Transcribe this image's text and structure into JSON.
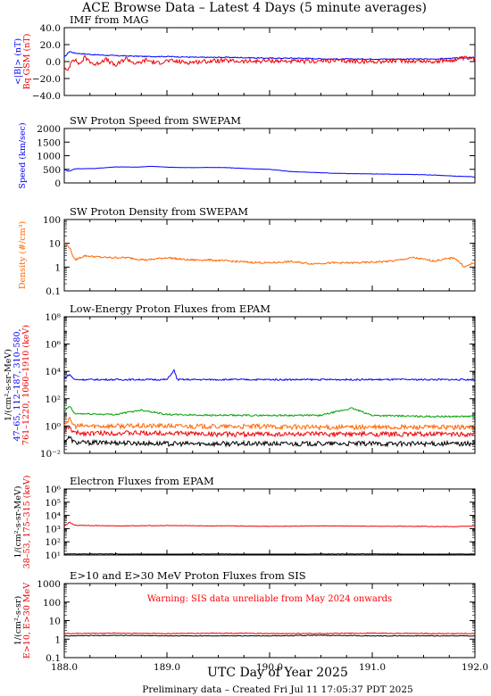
{
  "page": {
    "title": "ACE Browse Data – Latest 4 Days (5 minute averages)",
    "x_axis_label": "UTC Day of Year 2025",
    "footer": "Preliminary data – Created Fri Jul 11 17:05:37 PDT 2025"
  },
  "colors": {
    "blue": "#0000ff",
    "red": "#ee0000",
    "orange": "#ff6600",
    "green": "#00a000",
    "black": "#000000",
    "warning": "#ff0000"
  },
  "chart_data": [
    {
      "id": "imf",
      "type": "line",
      "title": "IMF from MAG",
      "ylabel_lines": [
        {
          "text": "<|B|> (nT)",
          "color": "#0000ff"
        },
        {
          "text": "Bⁱ GSM (nT)",
          "color": "#ee0000"
        }
      ],
      "ylabel_display": [
        {
          "text": "<|B|> (nT)",
          "color": "#0000ff"
        },
        {
          "text": "Bq GSM (nT)",
          "color": "#ee0000"
        }
      ],
      "yscale": "linear",
      "ylim": [
        -40,
        40
      ],
      "yticks": [
        -40,
        -20,
        0,
        20,
        40
      ],
      "ytick_labels": [
        "−40.0",
        "−20.0",
        "0.0",
        "20.0",
        "40.0"
      ],
      "xlim": [
        188.0,
        192.0
      ],
      "series": [
        {
          "color": "#0000ff",
          "x": [
            188.0,
            188.05,
            188.1,
            188.3,
            188.5,
            188.8,
            189.0,
            189.3,
            189.6,
            190.0,
            190.3,
            190.6,
            191.0,
            191.3,
            191.6,
            191.8,
            192.0
          ],
          "y": [
            5,
            12,
            10,
            8,
            7,
            6,
            6,
            5,
            5,
            4,
            4,
            3,
            3,
            3,
            3,
            4,
            5
          ]
        },
        {
          "color": "#ee0000",
          "x": [
            188.0,
            188.03,
            188.08,
            188.15,
            188.2,
            188.3,
            188.4,
            188.5,
            188.6,
            188.7,
            188.8,
            188.9,
            189.0,
            189.2,
            189.5,
            189.8,
            190.0,
            190.3,
            190.6,
            191.0,
            191.3,
            191.6,
            191.8,
            191.9,
            192.0
          ],
          "y": [
            -8,
            -12,
            4,
            -3,
            5,
            -4,
            3,
            -5,
            4,
            -3,
            2,
            -2,
            1,
            -1,
            1,
            0,
            1,
            0,
            1,
            0,
            1,
            0,
            2,
            4,
            3
          ]
        }
      ]
    },
    {
      "id": "speed",
      "type": "line",
      "title": "SW Proton Speed from SWEPAM",
      "ylabel_display": [
        {
          "text": "Speed (km/sec)",
          "color": "#0000ff"
        }
      ],
      "yscale": "linear",
      "ylim": [
        0,
        2000
      ],
      "yticks": [
        0,
        500,
        1000,
        1500,
        2000
      ],
      "ytick_labels": [
        "0",
        "500",
        "1000",
        "1500",
        "2000"
      ],
      "xlim": [
        188.0,
        192.0
      ],
      "series": [
        {
          "color": "#0000ff",
          "x": [
            188.0,
            188.05,
            188.1,
            188.3,
            188.5,
            188.7,
            188.85,
            189.0,
            189.2,
            189.4,
            189.6,
            189.8,
            190.0,
            190.2,
            190.4,
            190.6,
            190.8,
            191.0,
            191.2,
            191.4,
            191.6,
            191.8,
            192.0
          ],
          "y": [
            480,
            430,
            520,
            530,
            590,
            580,
            610,
            580,
            560,
            570,
            560,
            520,
            500,
            420,
            390,
            360,
            340,
            330,
            320,
            310,
            290,
            250,
            220
          ]
        }
      ]
    },
    {
      "id": "density",
      "type": "line",
      "title": "SW Proton Density from SWEPAM",
      "ylabel_display": [
        {
          "text": "Density (#/cm³)",
          "color": "#ff6600"
        }
      ],
      "yscale": "log",
      "ylim": [
        0.1,
        100
      ],
      "yticks": [
        0.1,
        1,
        10,
        100
      ],
      "ytick_labels": [
        "0.1",
        "1",
        "10",
        "100"
      ],
      "xlim": [
        188.0,
        192.0
      ],
      "series": [
        {
          "color": "#ff6600",
          "x": [
            188.0,
            188.05,
            188.1,
            188.2,
            188.4,
            188.6,
            188.8,
            189.0,
            189.2,
            189.4,
            189.6,
            189.8,
            190.0,
            190.2,
            190.4,
            190.6,
            190.8,
            191.0,
            191.2,
            191.4,
            191.6,
            191.8,
            191.9,
            192.0
          ],
          "y": [
            10,
            7,
            2,
            3,
            2.5,
            2.5,
            2,
            2.5,
            2,
            2,
            1.8,
            1.6,
            1.5,
            1.7,
            1.4,
            1.5,
            1.5,
            1.6,
            1.8,
            2.5,
            1.8,
            2.5,
            1,
            1.6
          ]
        }
      ]
    },
    {
      "id": "proton-flux",
      "type": "line",
      "title": "Low-Energy Proton Fluxes from EPAM",
      "ylabel_display": [
        {
          "text": "1/(cm²-s-sr-MeV)",
          "color": "#000000"
        },
        {
          "text": "47–65, 112–187, 310–580,",
          "color": "#0000ff"
        },
        {
          "text": "761–1220, 1060–1910 (keV)",
          "color": "#ee0000"
        }
      ],
      "yscale": "log",
      "ylim": [
        0.01,
        100000000
      ],
      "yticks": [
        0.01,
        1,
        100,
        10000,
        1000000,
        100000000
      ],
      "ytick_labels": [
        "10⁻²",
        "10⁰",
        "10²",
        "10⁴",
        "10⁶",
        "10⁸"
      ],
      "xlim": [
        188.0,
        192.0
      ],
      "series": [
        {
          "name": "47–65",
          "color": "#0000ff",
          "x": [
            188.0,
            188.05,
            188.1,
            188.5,
            189.0,
            189.07,
            189.1,
            189.5,
            190.0,
            190.5,
            191.0,
            191.5,
            192.0
          ],
          "y": [
            3000,
            6000,
            2500,
            2500,
            2500,
            12000,
            2500,
            2500,
            2500,
            2500,
            2500,
            2500,
            2500
          ]
        },
        {
          "name": "112–187",
          "color": "#00a000",
          "x": [
            188.0,
            188.05,
            188.1,
            188.5,
            188.75,
            189.0,
            189.5,
            190.0,
            190.5,
            190.8,
            191.0,
            191.5,
            192.0
          ],
          "y": [
            10,
            30,
            8,
            7,
            15,
            7,
            6,
            6,
            6,
            20,
            6,
            5,
            5
          ]
        },
        {
          "name": "310–580",
          "color": "#ff6600",
          "x": [
            188.0,
            188.05,
            188.1,
            188.5,
            189.0,
            189.5,
            190.0,
            190.5,
            191.0,
            191.5,
            192.0
          ],
          "y": [
            1.5,
            3,
            1,
            1,
            1,
            0.9,
            0.9,
            0.8,
            0.8,
            0.8,
            0.8
          ]
        },
        {
          "name": "761–1220",
          "color": "#ee0000",
          "x": [
            188.0,
            188.05,
            188.1,
            188.5,
            189.0,
            189.5,
            190.0,
            190.5,
            191.0,
            191.5,
            192.0
          ],
          "y": [
            0.4,
            0.8,
            0.3,
            0.3,
            0.3,
            0.25,
            0.25,
            0.25,
            0.25,
            0.25,
            0.25
          ]
        },
        {
          "name": "1060–1910",
          "color": "#000000",
          "x": [
            188.0,
            188.05,
            188.1,
            188.5,
            189.0,
            189.5,
            190.0,
            190.5,
            191.0,
            191.5,
            192.0
          ],
          "y": [
            0.08,
            0.15,
            0.06,
            0.06,
            0.05,
            0.05,
            0.05,
            0.05,
            0.05,
            0.05,
            0.05
          ]
        }
      ]
    },
    {
      "id": "electron-flux",
      "type": "line",
      "title": "Electron Fluxes from EPAM",
      "ylabel_display": [
        {
          "text": "1/(cm²-s-sr-MeV)",
          "color": "#000000"
        },
        {
          "text": "38–53, 175–315 (keV)",
          "color": "#ee0000"
        }
      ],
      "yscale": "log",
      "ylim": [
        10,
        1000000
      ],
      "yticks": [
        10,
        100,
        1000,
        10000,
        100000,
        1000000
      ],
      "ytick_labels": [
        "10¹",
        "10²",
        "10³",
        "10⁴",
        "10⁵",
        "10⁶"
      ],
      "xlim": [
        188.0,
        192.0
      ],
      "series": [
        {
          "name": "38–53",
          "color": "#ee0000",
          "x": [
            188.0,
            188.05,
            188.1,
            188.5,
            189.0,
            189.5,
            190.0,
            190.5,
            191.0,
            191.5,
            191.8,
            192.0
          ],
          "y": [
            1500,
            3000,
            1800,
            1600,
            1700,
            1600,
            1500,
            1600,
            1500,
            1500,
            1400,
            1600
          ]
        },
        {
          "name": "175–315",
          "color": "#000000",
          "x": [
            188.0,
            188.5,
            189.0,
            189.5,
            190.0,
            190.5,
            191.0,
            191.5,
            192.0
          ],
          "y": [
            12,
            12,
            11,
            12,
            11,
            12,
            12,
            11,
            12
          ]
        }
      ]
    },
    {
      "id": "sis",
      "type": "line",
      "title": "E>10 and E>30 MeV Proton Fluxes from SIS",
      "ylabel_display": [
        {
          "text": "1/(cm²-s-sr)",
          "color": "#000000"
        },
        {
          "text": "E>10, E>30 MeV",
          "color": "#ee0000"
        }
      ],
      "annotation": "Warning: SIS data unreliable from May 2024 onwards",
      "yscale": "log",
      "ylim": [
        0.1,
        1000
      ],
      "yticks": [
        0.1,
        1,
        10,
        100,
        1000
      ],
      "ytick_labels": [
        "0.1",
        "1",
        "10",
        "100",
        "1000"
      ],
      "xlim": [
        188.0,
        192.0
      ],
      "xticks": [
        188.0,
        189.0,
        190.0,
        191.0,
        192.0
      ],
      "xtick_labels": [
        "188.0",
        "189.0",
        "190.0",
        "191.0",
        "192.0"
      ],
      "series": [
        {
          "name": "E>10",
          "color": "#ee0000",
          "x": [
            188.0,
            188.5,
            189.0,
            189.5,
            190.0,
            190.5,
            191.0,
            191.5,
            192.0
          ],
          "y": [
            2.0,
            2.1,
            2.0,
            2.1,
            2.0,
            2.0,
            2.1,
            2.0,
            2.0
          ]
        },
        {
          "name": "E>30",
          "color": "#000000",
          "x": [
            188.0,
            188.5,
            189.0,
            189.5,
            190.0,
            190.5,
            191.0,
            191.5,
            192.0
          ],
          "y": [
            1.5,
            1.6,
            1.5,
            1.5,
            1.5,
            1.6,
            1.5,
            1.5,
            1.5
          ]
        }
      ]
    }
  ]
}
